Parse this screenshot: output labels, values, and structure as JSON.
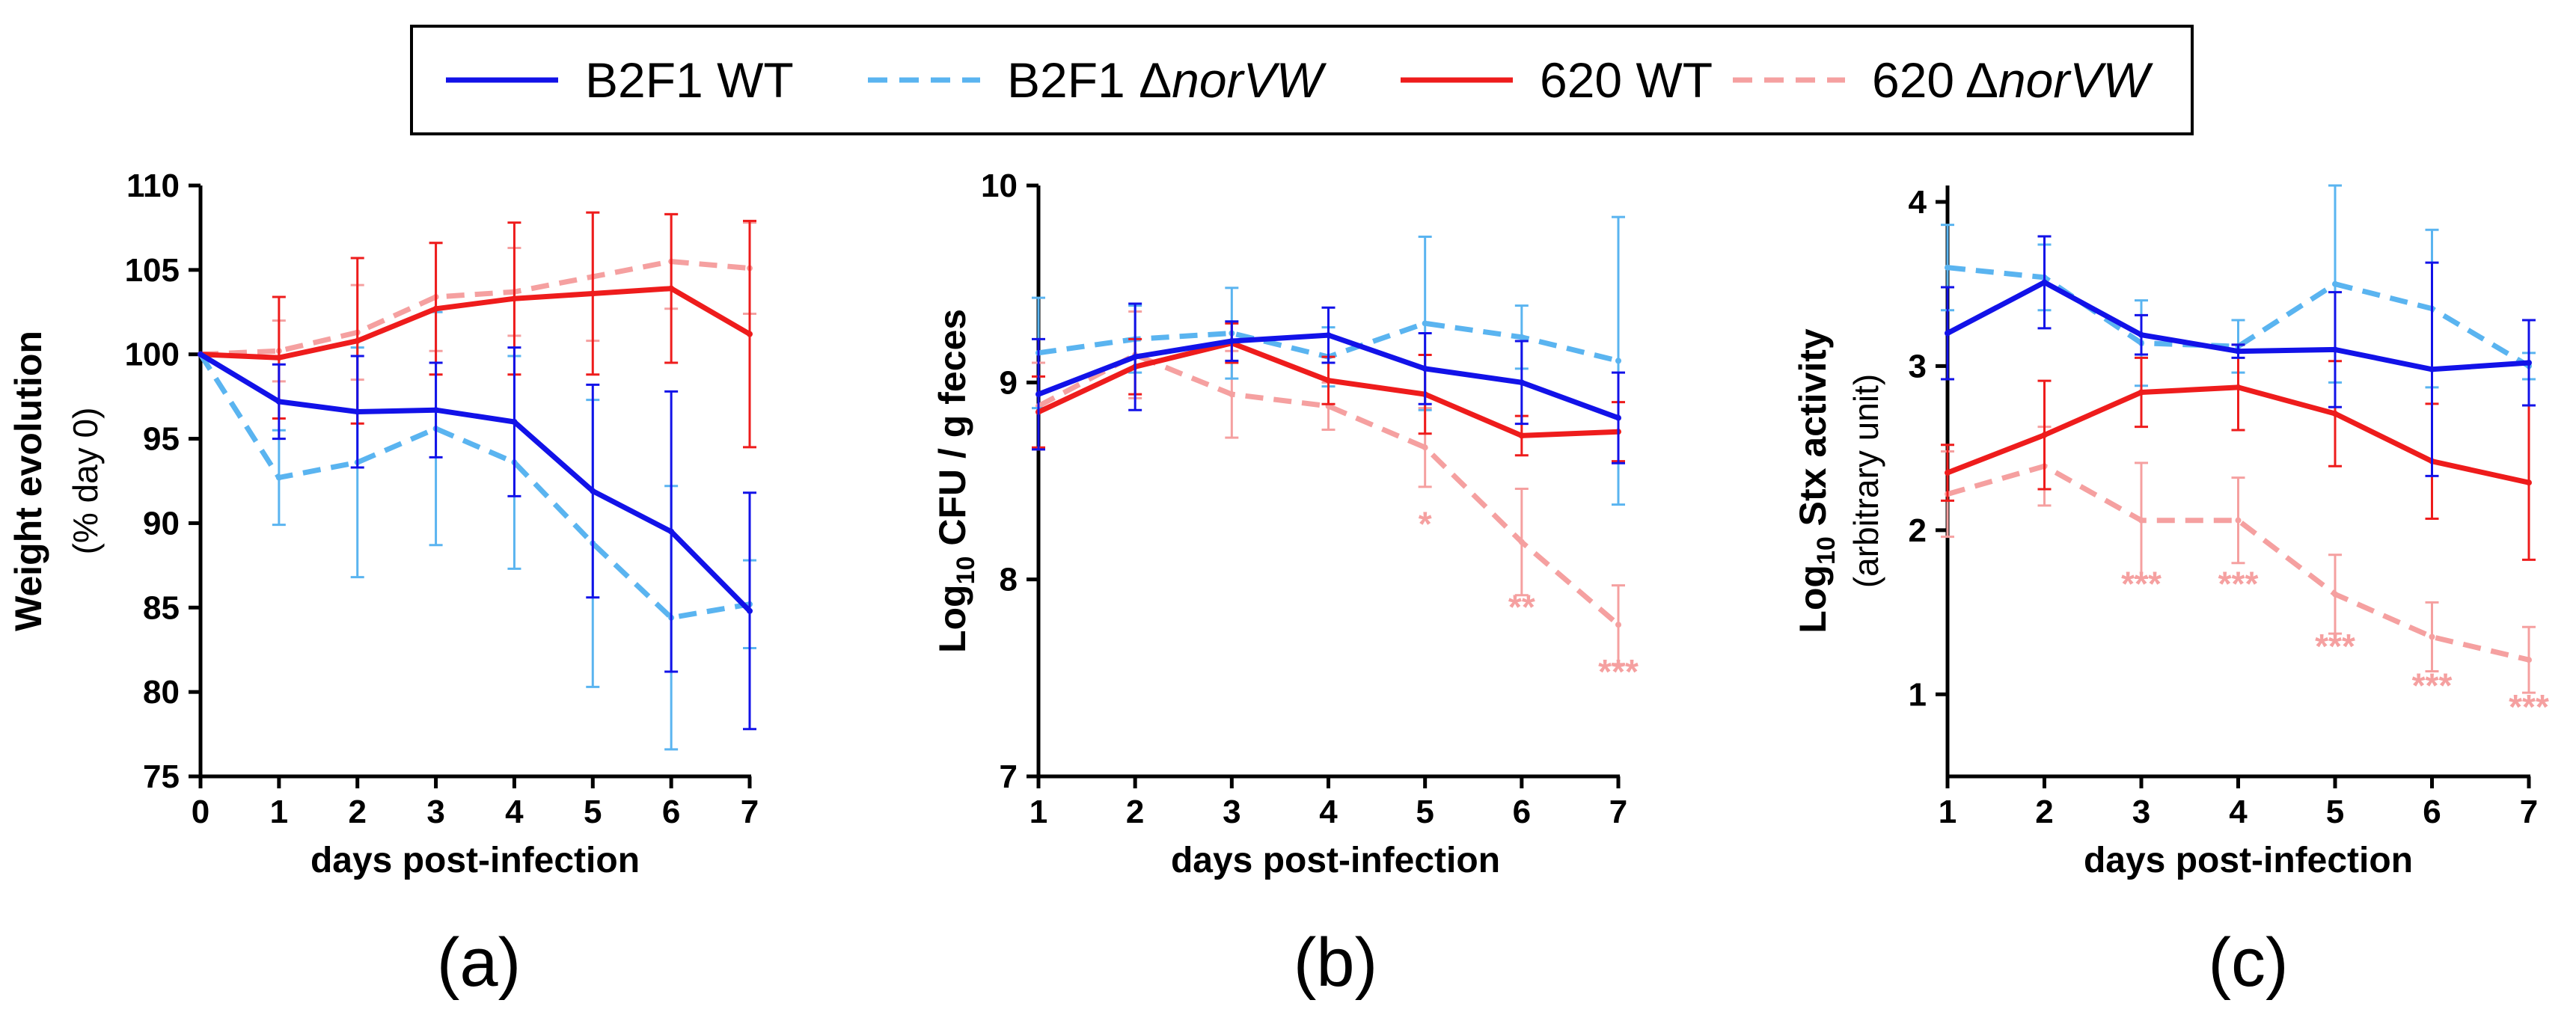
{
  "legend": {
    "entries": [
      {
        "id": "b2f1_wt",
        "text": "B2F1 WT",
        "italic": "",
        "color": "#1212E8",
        "dashed": false
      },
      {
        "id": "b2f1_dnorvw",
        "text": "B2F1 Δ",
        "italic": "norVW",
        "color": "#5AB4F0",
        "dashed": true
      },
      {
        "id": "wt620",
        "text": "620 WT",
        "italic": "",
        "color": "#EE1C1C",
        "dashed": false
      },
      {
        "id": "d620_dnorvw",
        "text": "620 Δ",
        "italic": "norVW",
        "color": "#F5A0A0",
        "dashed": true
      }
    ]
  },
  "chart_data": [
    {
      "type": "line",
      "panel_label": "(a)",
      "xlabel": "days post-infection",
      "ylabel": "Weight evolution",
      "ylabel_sub": "(% day 0)",
      "xlim": [
        0,
        7
      ],
      "ylim": [
        75,
        110
      ],
      "xticks": [
        0,
        1,
        2,
        3,
        4,
        5,
        6,
        7
      ],
      "yticks": [
        75,
        80,
        85,
        90,
        95,
        100,
        105,
        110
      ],
      "x": [
        0,
        1,
        2,
        3,
        4,
        5,
        6,
        7
      ],
      "series": [
        {
          "name": "620 Δ norVW",
          "color": "#F5A0A0",
          "dashed": true,
          "values": [
            100,
            100.2,
            101.3,
            103.4,
            103.7,
            104.6,
            105.5,
            105.1
          ],
          "errors": [
            0,
            1.8,
            2.8,
            3.2,
            2.6,
            3.8,
            2.8,
            2.7
          ]
        },
        {
          "name": "B2F1 Δ norVW",
          "color": "#5AB4F0",
          "dashed": true,
          "values": [
            100,
            92.7,
            93.6,
            95.6,
            93.6,
            88.8,
            84.4,
            85.2
          ],
          "errors": [
            0,
            2.8,
            6.8,
            6.9,
            6.3,
            8.5,
            7.8,
            2.6
          ]
        },
        {
          "name": "620 WT",
          "color": "#EE1C1C",
          "dashed": false,
          "values": [
            100,
            99.8,
            100.8,
            102.7,
            103.3,
            103.6,
            103.9,
            101.2
          ],
          "errors": [
            0,
            3.6,
            4.9,
            3.9,
            4.5,
            4.8,
            4.4,
            6.7
          ]
        },
        {
          "name": "B2F1 WT",
          "color": "#1212E8",
          "dashed": false,
          "values": [
            100,
            97.2,
            96.6,
            96.7,
            96.0,
            91.9,
            89.5,
            84.8
          ],
          "errors": [
            0,
            2.2,
            3.3,
            2.8,
            4.4,
            6.3,
            8.3,
            7.0
          ]
        }
      ],
      "annotations": []
    },
    {
      "type": "line",
      "panel_label": "(b)",
      "xlabel": "days post-infection",
      "ylabel": "Log10 CFU / g feces",
      "ylabel_main": "Log",
      "ylabel_subscript": "10",
      "ylabel_rest": " CFU / g feces",
      "ylabel_sub": "",
      "xlim": [
        1,
        7
      ],
      "ylim": [
        7,
        10
      ],
      "xticks": [
        1,
        2,
        3,
        4,
        5,
        6,
        7
      ],
      "yticks": [
        7,
        8,
        9,
        10
      ],
      "x": [
        1,
        2,
        3,
        4,
        5,
        6,
        7
      ],
      "series": [
        {
          "name": "620 Δ norVW",
          "color": "#F5A0A0",
          "dashed": true,
          "values": [
            8.88,
            9.14,
            8.94,
            8.88,
            8.67,
            8.19,
            7.77
          ],
          "errors": [
            0.22,
            0.22,
            0.22,
            0.12,
            0.2,
            0.27,
            0.2
          ]
        },
        {
          "name": "B2F1 Δ norVW",
          "color": "#5AB4F0",
          "dashed": true,
          "values": [
            9.15,
            9.22,
            9.25,
            9.13,
            9.3,
            9.23,
            9.11
          ],
          "errors": [
            0.28,
            0.17,
            0.23,
            0.15,
            0.44,
            0.16,
            0.73
          ]
        },
        {
          "name": "620 WT",
          "color": "#EE1C1C",
          "dashed": false,
          "values": [
            8.85,
            9.08,
            9.2,
            9.01,
            8.94,
            8.73,
            8.75
          ],
          "errors": [
            0.18,
            0.14,
            0.1,
            0.12,
            0.2,
            0.1,
            0.15
          ]
        },
        {
          "name": "B2F1 WT",
          "color": "#1212E8",
          "dashed": false,
          "values": [
            8.94,
            9.13,
            9.21,
            9.24,
            9.07,
            9.0,
            8.82
          ],
          "errors": [
            0.28,
            0.27,
            0.1,
            0.14,
            0.18,
            0.21,
            0.23
          ]
        }
      ],
      "annotations": [
        {
          "x": 5,
          "y": 8.22,
          "text": "*",
          "color": "#F5A0A0"
        },
        {
          "x": 6,
          "y": 7.8,
          "text": "**",
          "color": "#F5A0A0"
        },
        {
          "x": 7,
          "y": 7.47,
          "text": "***",
          "color": "#F5A0A0"
        }
      ]
    },
    {
      "type": "line",
      "panel_label": "(c)",
      "xlabel": "days post-infection",
      "ylabel": "Log10 Stx activity",
      "ylabel_main": "Log",
      "ylabel_subscript": "10",
      "ylabel_rest": " Stx activity",
      "ylabel_sub": "(arbitrary unit)",
      "xlim": [
        1,
        7
      ],
      "ylim": [
        0.5,
        4.1
      ],
      "xticks": [
        1,
        2,
        3,
        4,
        5,
        6,
        7
      ],
      "yticks": [
        1,
        2,
        3,
        4
      ],
      "x": [
        1,
        2,
        3,
        4,
        5,
        6,
        7
      ],
      "series": [
        {
          "name": "620 Δ norVW",
          "color": "#F5A0A0",
          "dashed": true,
          "values": [
            2.22,
            2.39,
            2.06,
            2.06,
            1.61,
            1.35,
            1.21
          ],
          "errors": [
            0.26,
            0.24,
            0.35,
            0.26,
            0.24,
            0.21,
            0.2
          ]
        },
        {
          "name": "B2F1 Δ norVW",
          "color": "#5AB4F0",
          "dashed": true,
          "values": [
            3.6,
            3.54,
            3.14,
            3.12,
            3.5,
            3.35,
            3.0
          ],
          "errors": [
            0.26,
            0.2,
            0.26,
            0.16,
            0.6,
            0.48,
            0.08
          ]
        },
        {
          "name": "620 WT",
          "color": "#EE1C1C",
          "dashed": false,
          "values": [
            2.35,
            2.58,
            2.84,
            2.87,
            2.71,
            2.42,
            2.29
          ],
          "errors": [
            0.17,
            0.33,
            0.21,
            0.26,
            0.32,
            0.35,
            0.47
          ]
        },
        {
          "name": "B2F1 WT",
          "color": "#1212E8",
          "dashed": false,
          "values": [
            3.2,
            3.51,
            3.19,
            3.09,
            3.1,
            2.98,
            3.02
          ],
          "errors": [
            0.28,
            0.28,
            0.12,
            0.04,
            0.35,
            0.65,
            0.26
          ]
        }
      ],
      "annotations": [
        {
          "x": 3,
          "y": 1.6,
          "text": "***",
          "color": "#F5A0A0"
        },
        {
          "x": 4,
          "y": 1.6,
          "text": "***",
          "color": "#F5A0A0"
        },
        {
          "x": 5,
          "y": 1.22,
          "text": "***",
          "color": "#F5A0A0"
        },
        {
          "x": 6,
          "y": 0.98,
          "text": "***",
          "color": "#F5A0A0"
        },
        {
          "x": 7,
          "y": 0.85,
          "text": "***",
          "color": "#F5A0A0"
        }
      ]
    }
  ]
}
